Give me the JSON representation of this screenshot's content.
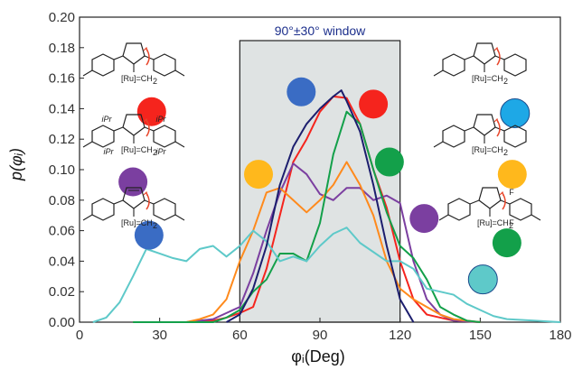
{
  "chart_data": {
    "type": "line",
    "title": "",
    "xlabel": "φᵢ(Deg)",
    "ylabel": "p(φᵢ)",
    "xlim": [
      0,
      180
    ],
    "ylim": [
      0,
      0.2
    ],
    "x_ticks": [
      0,
      30,
      60,
      90,
      120,
      150,
      180
    ],
    "y_ticks": [
      0.0,
      0.02,
      0.04,
      0.06,
      0.08,
      0.1,
      0.12,
      0.14,
      0.16,
      0.18,
      0.2
    ],
    "window": {
      "from": 60,
      "to": 120,
      "label": "90°±30° window"
    },
    "grid": false,
    "series": [
      {
        "color": "#f5241d",
        "x": [
          20,
          40,
          50,
          55,
          60,
          65,
          70,
          75,
          80,
          85,
          90,
          95,
          100,
          105,
          110,
          115,
          120,
          125,
          130,
          135,
          140,
          150
        ],
        "values": [
          0,
          0,
          0.001,
          0.003,
          0.006,
          0.01,
          0.035,
          0.07,
          0.105,
          0.12,
          0.138,
          0.148,
          0.147,
          0.13,
          0.1,
          0.075,
          0.04,
          0.015,
          0.005,
          0.003,
          0.001,
          0
        ]
      },
      {
        "color": "#7b3fa0",
        "x": [
          20,
          40,
          50,
          55,
          60,
          65,
          70,
          75,
          80,
          85,
          90,
          95,
          100,
          105,
          110,
          115,
          120,
          125,
          130,
          135,
          140,
          150
        ],
        "values": [
          0,
          0,
          0.002,
          0.006,
          0.01,
          0.032,
          0.06,
          0.085,
          0.104,
          0.097,
          0.084,
          0.08,
          0.088,
          0.088,
          0.08,
          0.083,
          0.078,
          0.04,
          0.015,
          0.005,
          0.001,
          0
        ]
      },
      {
        "color": "#ff8a1c",
        "x": [
          20,
          40,
          45,
          50,
          55,
          60,
          65,
          70,
          75,
          80,
          85,
          90,
          95,
          100,
          105,
          110,
          115,
          120,
          125,
          130,
          135,
          140,
          150
        ],
        "values": [
          0,
          0,
          0.002,
          0.005,
          0.015,
          0.04,
          0.06,
          0.085,
          0.088,
          0.08,
          0.072,
          0.08,
          0.09,
          0.105,
          0.09,
          0.07,
          0.04,
          0.022,
          0.015,
          0.01,
          0.005,
          0.002,
          0
        ]
      },
      {
        "color": "#13a04a",
        "x": [
          20,
          50,
          55,
          60,
          65,
          70,
          75,
          80,
          85,
          90,
          95,
          100,
          105,
          110,
          115,
          120,
          125,
          130,
          135,
          140,
          145,
          150
        ],
        "values": [
          0,
          0,
          0.003,
          0.008,
          0.02,
          0.028,
          0.045,
          0.045,
          0.04,
          0.065,
          0.11,
          0.138,
          0.13,
          0.1,
          0.072,
          0.05,
          0.042,
          0.028,
          0.01,
          0.005,
          0.001,
          0
        ]
      },
      {
        "color": "#5ec9c9",
        "x": [
          5,
          10,
          15,
          20,
          25,
          30,
          35,
          40,
          45,
          50,
          55,
          60,
          65,
          70,
          75,
          80,
          85,
          90,
          95,
          100,
          105,
          110,
          115,
          120,
          125,
          130,
          135,
          140,
          145,
          150,
          155,
          160,
          170,
          180
        ],
        "values": [
          0,
          0.003,
          0.013,
          0.03,
          0.048,
          0.045,
          0.042,
          0.04,
          0.048,
          0.05,
          0.043,
          0.05,
          0.06,
          0.053,
          0.04,
          0.043,
          0.04,
          0.05,
          0.058,
          0.062,
          0.052,
          0.046,
          0.04,
          0.04,
          0.035,
          0.022,
          0.02,
          0.018,
          0.012,
          0.008,
          0.004,
          0.002,
          0.001,
          0
        ]
      },
      {
        "color": "#1c1e6e",
        "x": [
          55,
          60,
          65,
          70,
          75,
          80,
          85,
          90,
          95,
          98,
          100,
          105,
          110,
          115,
          120,
          125
        ],
        "values": [
          0,
          0.005,
          0.022,
          0.05,
          0.09,
          0.115,
          0.13,
          0.14,
          0.148,
          0.152,
          0.145,
          0.125,
          0.09,
          0.05,
          0.015,
          0
        ]
      }
    ],
    "markers": [
      {
        "color": "#f5241d",
        "x": 27,
        "y": 0.138
      },
      {
        "color": "#7b3fa0",
        "x": 20,
        "y": 0.092
      },
      {
        "color": "#3a6cc4",
        "x": 26,
        "y": 0.057
      },
      {
        "color": "#3a6cc4",
        "x": 83,
        "y": 0.151
      },
      {
        "color": "#f5241d",
        "x": 110,
        "y": 0.143
      },
      {
        "color": "#ffb81c",
        "x": 67,
        "y": 0.097
      },
      {
        "color": "#13a04a",
        "x": 116,
        "y": 0.105
      },
      {
        "color": "#7b3fa0",
        "x": 129,
        "y": 0.068
      },
      {
        "color": "#5ec9c9",
        "x": 151,
        "y": 0.028
      },
      {
        "color": "#1ea8e6",
        "x": 163,
        "y": 0.137
      },
      {
        "color": "#ffb81c",
        "x": 162,
        "y": 0.097
      },
      {
        "color": "#13a04a",
        "x": 160,
        "y": 0.052
      }
    ],
    "structure_labels": {
      "ru": "[Ru]=CH",
      "ru_sub": "2",
      "ipr": "iPr",
      "f": "F"
    }
  }
}
